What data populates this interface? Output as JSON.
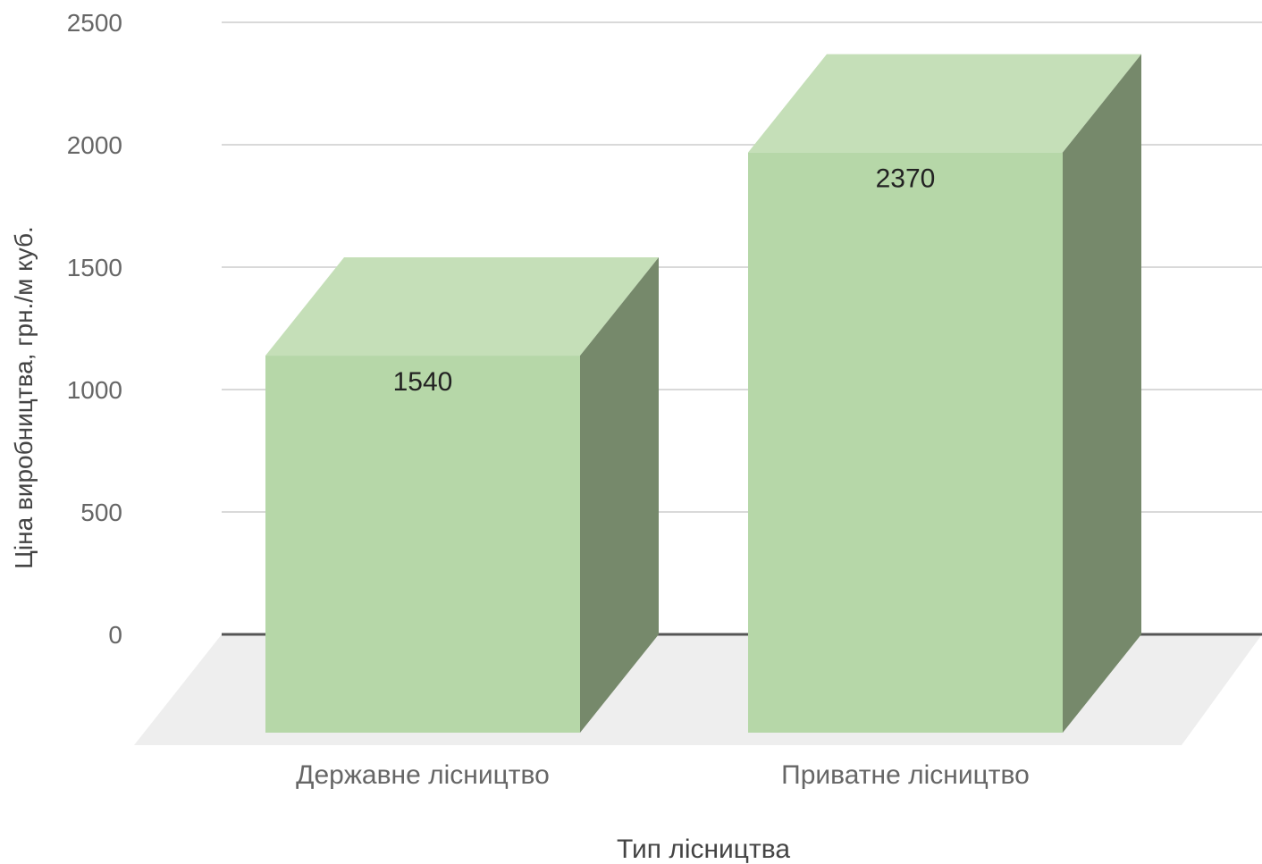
{
  "chart_data": {
    "type": "bar",
    "style": "3d",
    "title": "",
    "categories": [
      "Державне лісництво",
      "Приватне лісництво"
    ],
    "series": [
      {
        "values": [
          1540,
          2370
        ]
      }
    ],
    "data_labels": [
      "1540",
      "2370"
    ],
    "xlabel": "Тип лісництва",
    "ylabel": "Ціна виробництва, грн./м куб.",
    "ylim": [
      0,
      2500
    ],
    "yticks": [
      0,
      500,
      1000,
      1500,
      2000,
      2500
    ],
    "grid": true,
    "legend": "none",
    "colors": {
      "bar_front": "#b6d7a8",
      "bar_top": "#c5dfb8",
      "bar_side": "#76896b",
      "floor": "#eeeeee",
      "gridline": "#d9d9d9",
      "baseline": "#555555",
      "tick_text": "#666666",
      "axis_title": "#444444",
      "data_label": "#222222"
    }
  }
}
